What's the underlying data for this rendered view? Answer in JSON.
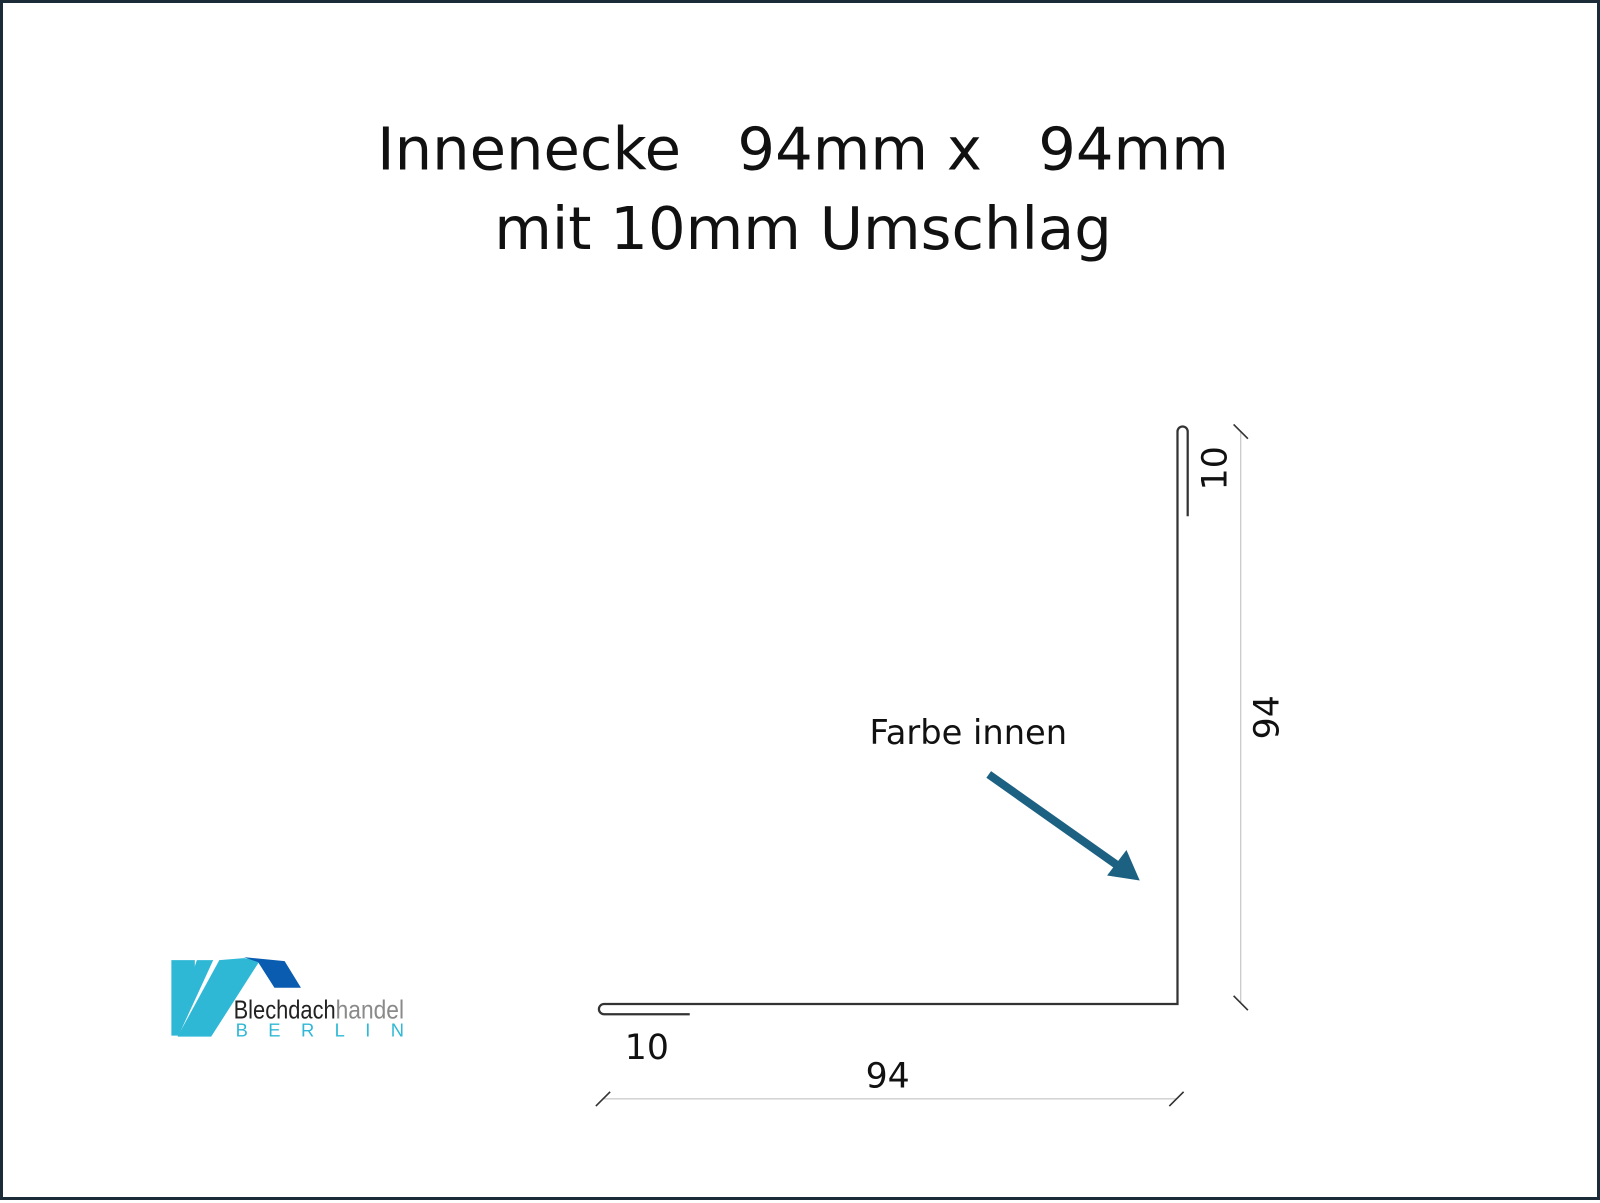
{
  "title": {
    "line1": "Innenecke   94mm x   94mm",
    "line2": "mit 10mm Umschlag"
  },
  "diagram": {
    "annotation": "Farbe innen",
    "dimensions": {
      "top_hem": "10",
      "vertical_leg": "94",
      "bottom_hem": "10",
      "horizontal_leg": "94"
    },
    "arrow_color": "#1d6182"
  },
  "logo": {
    "word1": "Blechdach",
    "word2": "handel",
    "subtitle": "BERLIN",
    "colors": {
      "light_blue": "#2fb8d6",
      "dark_blue": "#0a5cb0",
      "text_dark": "#222222",
      "text_gray": "#8a8a8a"
    }
  }
}
